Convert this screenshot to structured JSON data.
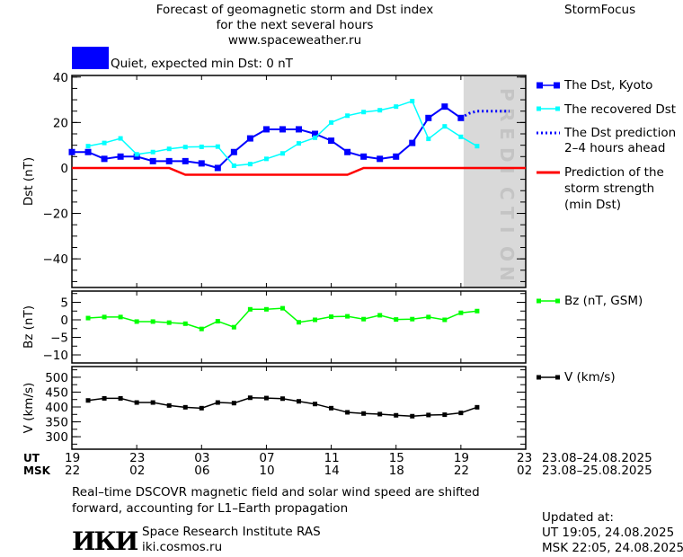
{
  "header": {
    "title_line1": "Forecast of geomagnetic storm and Dst index",
    "title_line2": "for the next several hours",
    "website": "www.spaceweather.ru",
    "brand": "StormFocus",
    "status_text": "Quiet, expected min Dst: 0 nT",
    "status_color": "#0000ff"
  },
  "prediction_label": "PREDICTION",
  "legend": {
    "dst_kyoto": "The Dst, Kyoto",
    "recovered": "The recovered Dst",
    "prediction_l1": "The Dst prediction",
    "prediction_l2": "2–4 hours ahead",
    "storm_l1": "Prediction of the",
    "storm_l2": "storm strength",
    "storm_l3": "(min Dst)",
    "bz": "Bz (nT, GSM)",
    "v": "V (km/s)"
  },
  "time_axis": {
    "ut_label": "UT",
    "msk_label": "MSK",
    "ut_ticks": [
      "19",
      "23",
      "03",
      "07",
      "11",
      "15",
      "19",
      "23"
    ],
    "msk_ticks": [
      "22",
      "02",
      "06",
      "10",
      "14",
      "18",
      "22",
      "02"
    ],
    "ut_range": "23.08–24.08.2025",
    "msk_range": "23.08–25.08.2025"
  },
  "footer": {
    "note_l1": "Real–time DSCOVR magnetic field and solar wind speed are shifted",
    "note_l2": "forward, accounting for L1–Earth propagation",
    "institute": "Space Research Institute RAS",
    "institute_url": "iki.cosmos.ru",
    "logo_text": "ИКИ",
    "updated_label": "Updated at:",
    "updated_ut": "UT   19:05, 24.08.2025",
    "updated_msk": "MSK 22:05, 24.08.2025"
  },
  "chart_data": [
    {
      "type": "line",
      "ylabel": "Dst (nT)",
      "x_unit": "hours from 19 UT 23.08.2025",
      "xlim": [
        0,
        28
      ],
      "ylim": [
        -52.6,
        40.7
      ],
      "yticks": [
        40,
        20,
        0,
        -20,
        -40
      ],
      "prediction_region": [
        24,
        28
      ],
      "series": [
        {
          "name": "The Dst, Kyoto",
          "color": "#0000ff",
          "x": [
            0,
            1,
            2,
            3,
            4,
            5,
            6,
            7,
            8,
            9,
            10,
            11,
            12,
            13,
            14,
            15,
            16,
            17,
            18,
            19,
            20,
            21,
            22,
            23,
            24
          ],
          "values": [
            7,
            7,
            4,
            5,
            5,
            3,
            3,
            3,
            2,
            0,
            7,
            13,
            17,
            17,
            17,
            15,
            12,
            7,
            5,
            4,
            5,
            11,
            22,
            27,
            22
          ]
        },
        {
          "name": "The recovered Dst",
          "color": "#00ffff",
          "x": [
            1,
            2,
            3,
            4,
            5,
            6,
            7,
            8,
            9,
            10,
            11,
            12,
            13,
            14,
            15,
            16,
            17,
            18,
            19,
            20,
            21,
            22,
            23,
            24,
            25
          ],
          "values": [
            9.6,
            11,
            13,
            6,
            7,
            8.4,
            9.2,
            9.3,
            9.4,
            1,
            1.7,
            4,
            6.4,
            10.8,
            13.3,
            20,
            23,
            24.6,
            25.4,
            27,
            29.4,
            12.8,
            18.3,
            13.7,
            9.6
          ]
        },
        {
          "name": "The Dst prediction 2–4 hours ahead",
          "color": "#0000ff",
          "style": "dotted",
          "x": [
            24,
            24.5,
            25,
            26,
            27
          ],
          "values": [
            22,
            24,
            25,
            25,
            25
          ]
        },
        {
          "name": "Prediction of the storm strength (min Dst)",
          "color": "#ff0000",
          "x": [
            0,
            6,
            7,
            17,
            18,
            28
          ],
          "values": [
            0,
            0,
            -3,
            -3,
            0,
            0
          ]
        }
      ]
    },
    {
      "type": "line",
      "ylabel": "Bz (nT)",
      "xlim": [
        0,
        28
      ],
      "ylim": [
        -12.3,
        8.2
      ],
      "yticks": [
        5,
        0,
        -5,
        -10
      ],
      "series": [
        {
          "name": "Bz (nT, GSM)",
          "color": "#00ff00",
          "x": [
            1,
            2,
            3,
            4,
            5,
            6,
            7,
            8,
            9,
            10,
            11,
            12,
            13,
            14,
            15,
            16,
            17,
            18,
            19,
            20,
            21,
            22,
            23,
            24,
            25
          ],
          "values": [
            0.5,
            0.8,
            0.8,
            -0.5,
            -0.5,
            -0.8,
            -1.1,
            -2.6,
            -0.4,
            -2.1,
            3,
            3,
            3.3,
            -0.7,
            0,
            0.9,
            1,
            0.2,
            1.3,
            0.1,
            0.2,
            0.8,
            0,
            2,
            2.5
          ]
        }
      ]
    },
    {
      "type": "line",
      "ylabel": "V (km/s)",
      "xlim": [
        0,
        28
      ],
      "ylim": [
        258,
        536
      ],
      "yticks": [
        500,
        450,
        400,
        350,
        300
      ],
      "series": [
        {
          "name": "V (km/s)",
          "color": "#000000",
          "x": [
            1,
            2,
            3,
            4,
            5,
            6,
            7,
            8,
            9,
            10,
            11,
            12,
            13,
            14,
            15,
            16,
            17,
            18,
            19,
            20,
            21,
            22,
            23,
            24,
            25
          ],
          "values": [
            422,
            429,
            429,
            415,
            415,
            405,
            399,
            396,
            415,
            413,
            431,
            430,
            428,
            419,
            410,
            396,
            382,
            378,
            376,
            372,
            369,
            373,
            374,
            380,
            399
          ]
        }
      ]
    }
  ]
}
